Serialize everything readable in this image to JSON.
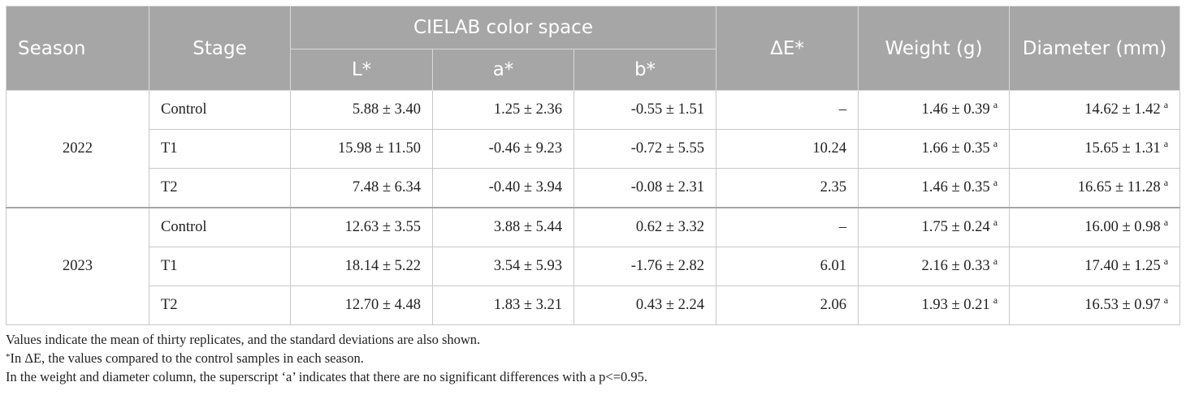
{
  "header": {
    "season": "Season",
    "stage": "Stage",
    "cielab": "CIELAB color space",
    "l": "L*",
    "a": "a*",
    "b": "b*",
    "delta_e": "ΔE*",
    "weight": "Weight (g)",
    "diameter": "Diameter (mm)"
  },
  "groups": [
    {
      "season": "2022",
      "rows": [
        {
          "stage": "Control",
          "l": "5.88 ± 3.40",
          "a": "1.25 ± 2.36",
          "b": "-0.55 ± 1.51",
          "de": "–",
          "w": "1.46 ± 0.39",
          "w_sup": "a",
          "d": "14.62 ± 1.42",
          "d_sup": "a"
        },
        {
          "stage": "T1",
          "l": "15.98 ± 11.50",
          "a": "-0.46 ± 9.23",
          "b": "-0.72 ± 5.55",
          "de": "10.24",
          "w": "1.66 ± 0.35",
          "w_sup": "a",
          "d": "15.65 ± 1.31",
          "d_sup": "a"
        },
        {
          "stage": "T2",
          "l": "7.48 ± 6.34",
          "a": "-0.40 ± 3.94",
          "b": "-0.08 ± 2.31",
          "de": "2.35",
          "w": "1.46 ± 0.35",
          "w_sup": "a",
          "d": "16.65 ± 11.28",
          "d_sup": "a"
        }
      ]
    },
    {
      "season": "2023",
      "rows": [
        {
          "stage": "Control",
          "l": "12.63 ± 3.55",
          "a": "3.88 ± 5.44",
          "b": "0.62 ± 3.32",
          "de": "–",
          "w": "1.75 ± 0.24",
          "w_sup": "a",
          "d": "16.00 ± 0.98",
          "d_sup": "a"
        },
        {
          "stage": "T1",
          "l": "18.14 ± 5.22",
          "a": "3.54 ± 5.93",
          "b": "-1.76 ± 2.82",
          "de": "6.01",
          "w": "2.16 ± 0.33",
          "w_sup": "a",
          "d": "17.40 ± 1.25",
          "d_sup": "a"
        },
        {
          "stage": "T2",
          "l": "12.70 ± 4.48",
          "a": "1.83 ± 3.21",
          "b": "0.43 ± 2.24",
          "de": "2.06",
          "w": "1.93 ± 0.21",
          "w_sup": "a",
          "d": "16.53 ± 0.97",
          "d_sup": "a"
        }
      ]
    }
  ],
  "notes": {
    "line1": "Values indicate the mean of thirty replicates, and the standard deviations are also shown.",
    "line2_star": "*",
    "line2": "In ΔE, the values compared to the control samples in each season.",
    "line3": "In the weight and diameter column, the superscript ‘a’ indicates that there are no significant differences with a p<=0.95."
  }
}
